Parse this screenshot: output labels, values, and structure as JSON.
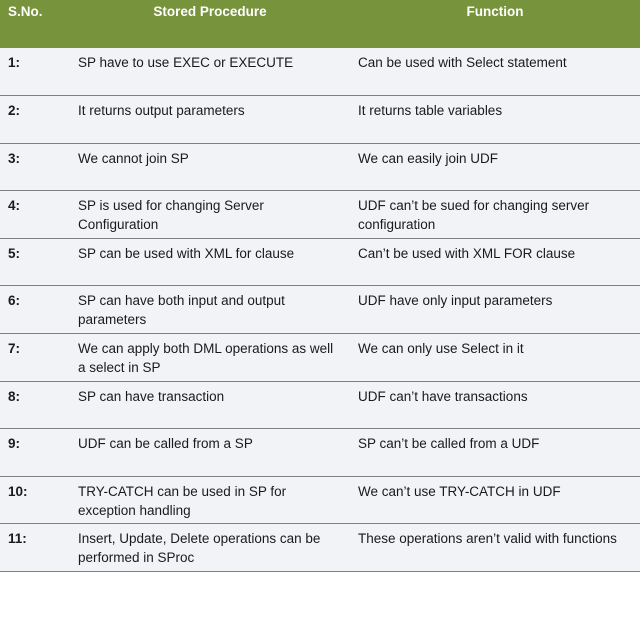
{
  "table": {
    "columns": [
      "S.No.",
      "Stored Procedure",
      "Function"
    ],
    "rows": [
      [
        "1:",
        "SP have to use EXEC or EXECUTE",
        "Can be used with Select statement"
      ],
      [
        "2:",
        "It returns output parameters",
        "It returns table variables"
      ],
      [
        "3:",
        "We cannot join SP",
        "We can easily join UDF"
      ],
      [
        "4:",
        "SP is used for changing Server Configuration",
        "UDF can’t be sued for changing server configuration"
      ],
      [
        "5:",
        "SP can be used with XML for clause",
        "Can’t be used with XML FOR clause"
      ],
      [
        "6:",
        "SP can have both input and output parameters",
        "UDF have only input parameters"
      ],
      [
        "7:",
        "We can apply both DML operations as well a select in SP",
        "We can only use Select in it"
      ],
      [
        "8:",
        "SP can have transaction",
        "UDF can’t have transactions"
      ],
      [
        "9:",
        "UDF can be called from a SP",
        "SP can’t be called from a UDF"
      ],
      [
        "10:",
        "TRY-CATCH can be used in SP for exception handling",
        "We can’t use TRY-CATCH in UDF"
      ],
      [
        "11:",
        "Insert, Update, Delete operations can be performed in SProc",
        "These operations aren’t valid with functions"
      ]
    ]
  }
}
